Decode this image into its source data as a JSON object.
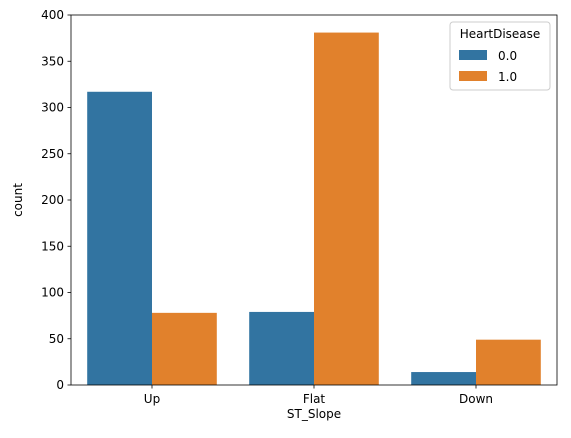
{
  "chart_data": {
    "type": "bar",
    "categories": [
      "Up",
      "Flat",
      "Down"
    ],
    "series": [
      {
        "name": "0.0",
        "values": [
          317,
          79,
          14
        ],
        "color": "#3274a1"
      },
      {
        "name": "1.0",
        "values": [
          78,
          381,
          49
        ],
        "color": "#e1812c"
      }
    ],
    "xlabel": "ST_Slope",
    "ylabel": "count",
    "ylim": [
      0,
      400
    ],
    "yticks": [
      0,
      50,
      100,
      150,
      200,
      250,
      300,
      350,
      400
    ],
    "legend": {
      "title": "HeartDisease",
      "placement": "top-right"
    },
    "grid": false
  }
}
